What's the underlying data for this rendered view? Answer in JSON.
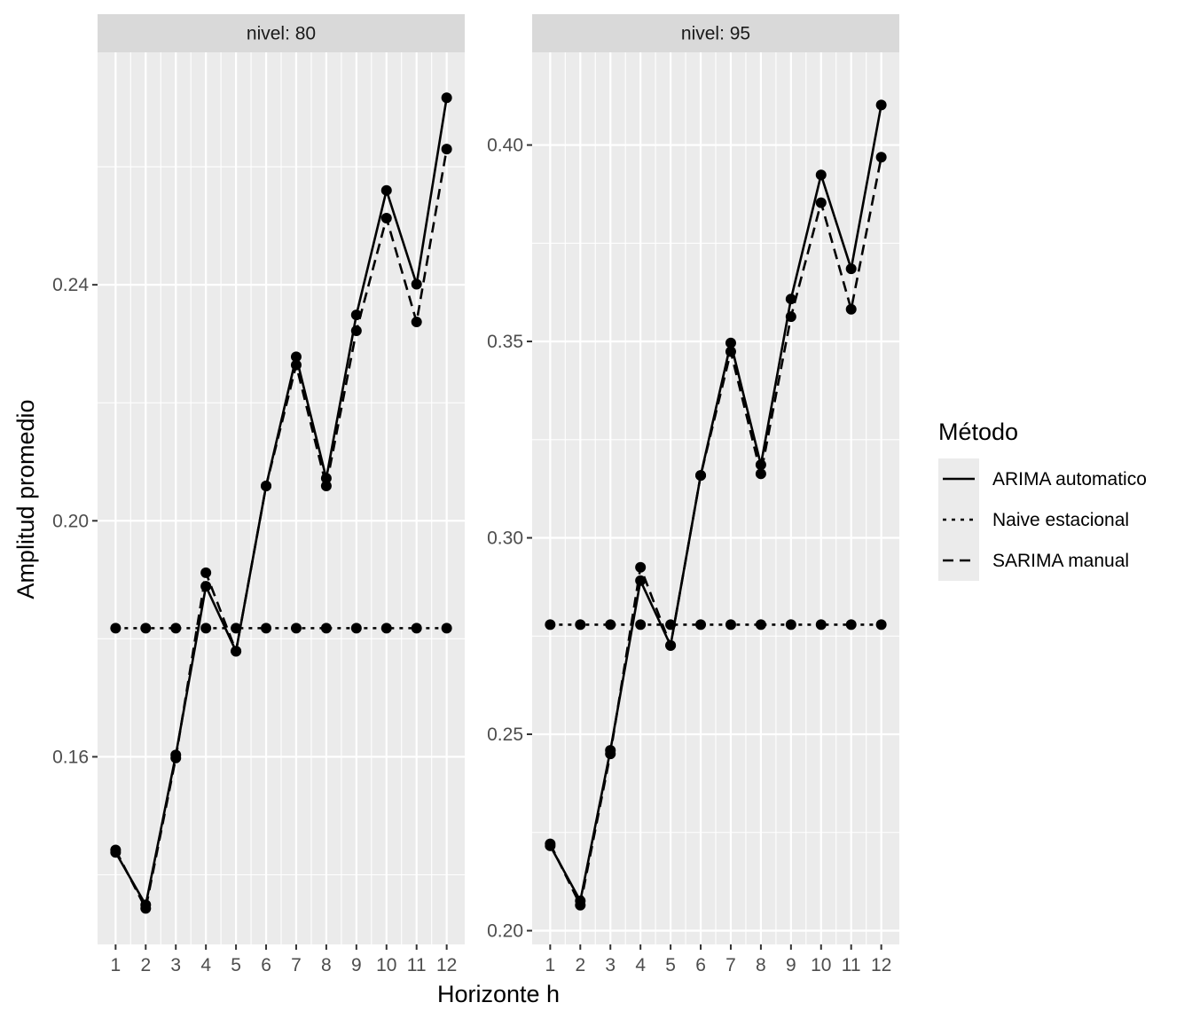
{
  "chart_data": {
    "type": "line",
    "xlabel": "Horizonte h",
    "ylabel": "Amplitud promedio",
    "x": [
      1,
      2,
      3,
      4,
      5,
      6,
      7,
      8,
      9,
      10,
      11,
      12
    ],
    "x_tick_labels": [
      "1",
      "2",
      "3",
      "4",
      "5",
      "6",
      "7",
      "8",
      "9",
      "10",
      "11",
      "12"
    ],
    "legend": {
      "title": "Método",
      "placement": "right",
      "entries": [
        {
          "label": "ARIMA automatico",
          "linetype": "solid"
        },
        {
          "label": "Naive estacional",
          "linetype": "dotted"
        },
        {
          "label": "SARIMA manual",
          "linetype": "dashed"
        }
      ]
    },
    "grid": true,
    "colors": {
      "panel_bg": "#ebebeb",
      "strip_bg": "#d9d9d9",
      "grid": "#ffffff",
      "series": "#000000"
    },
    "panels": [
      {
        "strip": "nivel: 80",
        "ylim": [
          0.1282,
          0.2794
        ],
        "y_ticks": [
          0.16,
          0.2,
          0.24
        ],
        "y_tick_labels": [
          "0.16",
          "0.20",
          "0.24"
        ],
        "series": [
          {
            "name": "ARIMA automatico",
            "values": [
              0.1438,
              0.1349,
              0.1603,
              0.1889,
              0.1779,
              0.2059,
              0.2278,
              0.2072,
              0.2349,
              0.256,
              0.2401,
              0.2717
            ]
          },
          {
            "name": "Naive estacional",
            "values": [
              0.1818,
              0.1818,
              0.1818,
              0.1818,
              0.1818,
              0.1818,
              0.1818,
              0.1818,
              0.1818,
              0.1818,
              0.1818,
              0.1818
            ]
          },
          {
            "name": "SARIMA manual",
            "values": [
              0.1442,
              0.1343,
              0.1598,
              0.1912,
              0.1779,
              0.2059,
              0.2264,
              0.2059,
              0.2322,
              0.2513,
              0.2337,
              0.263
            ]
          }
        ]
      },
      {
        "strip": "nivel: 95",
        "ylim": [
          0.1965,
          0.4236
        ],
        "y_ticks": [
          0.2,
          0.25,
          0.3,
          0.35,
          0.4
        ],
        "y_tick_labels": [
          "0.20",
          "0.25",
          "0.30",
          "0.35",
          "0.40"
        ],
        "series": [
          {
            "name": "ARIMA automatico",
            "values": [
              0.2216,
              0.2076,
              0.2459,
              0.2891,
              0.2726,
              0.3159,
              0.3496,
              0.3186,
              0.3608,
              0.3924,
              0.3685,
              0.4102
            ]
          },
          {
            "name": "Naive estacional",
            "values": [
              0.2779,
              0.2779,
              0.2779,
              0.2779,
              0.2779,
              0.2779,
              0.2779,
              0.2779,
              0.2779,
              0.2779,
              0.2779,
              0.2779
            ]
          },
          {
            "name": "SARIMA manual",
            "values": [
              0.2221,
              0.2065,
              0.245,
              0.2925,
              0.2726,
              0.3159,
              0.3474,
              0.3163,
              0.3563,
              0.3853,
              0.3582,
              0.3969
            ]
          }
        ]
      }
    ]
  }
}
